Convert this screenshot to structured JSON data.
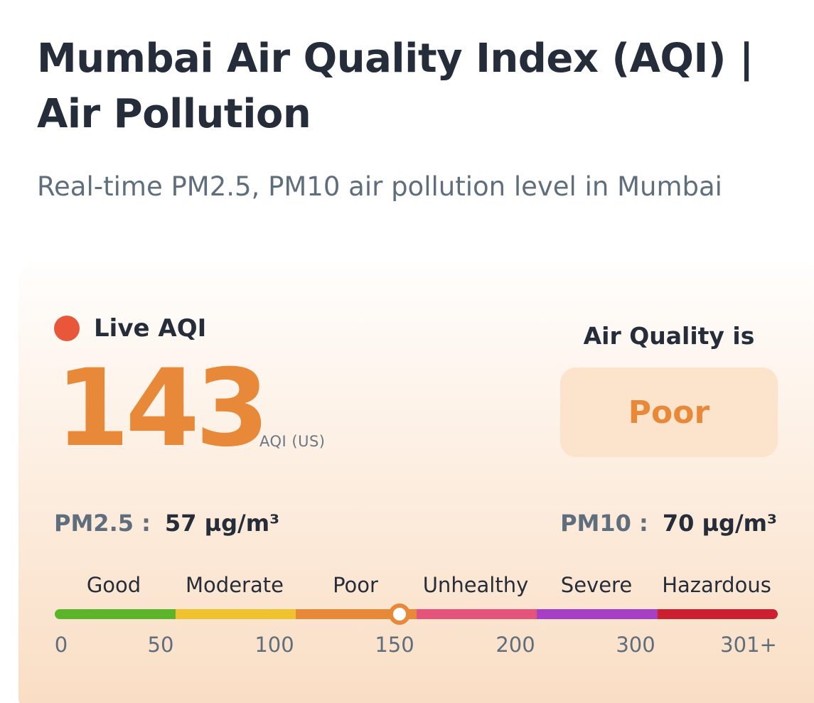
{
  "header": {
    "title": "Mumbai Air Quality Index (AQI) | Air Pollution",
    "subtitle": "Real-time PM2.5, PM10 air pollution level in Mumbai"
  },
  "live": {
    "label": "Live AQI",
    "indicator_color": "#e8573a"
  },
  "aqi": {
    "value": "143",
    "unit": "AQI (US)",
    "numeric_value": 143
  },
  "air_quality": {
    "heading": "Air Quality is",
    "status": "Poor",
    "status_color": "#e8893a"
  },
  "pollutants": {
    "pm25": {
      "label": "PM2.5 :",
      "value": "57 µg/m³"
    },
    "pm10": {
      "label": "PM10 :",
      "value": "70 µg/m³"
    }
  },
  "scale": {
    "categories": [
      {
        "label": "Good",
        "color": "#5bb52a"
      },
      {
        "label": "Moderate",
        "color": "#f0c22e"
      },
      {
        "label": "Poor",
        "color": "#e8893a"
      },
      {
        "label": "Unhealthy",
        "color": "#e6537a"
      },
      {
        "label": "Severe",
        "color": "#a63fc4"
      },
      {
        "label": "Hazardous",
        "color": "#cc1f2f"
      }
    ],
    "ticks": [
      "0",
      "50",
      "100",
      "150",
      "200",
      "300",
      "301+"
    ],
    "marker_fraction": 0.477
  }
}
